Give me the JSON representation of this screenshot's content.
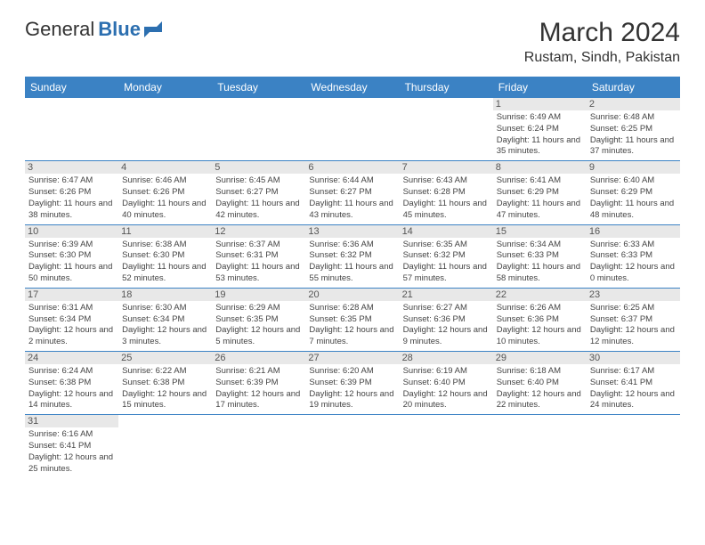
{
  "logo": {
    "text1": "General",
    "text2": "Blue"
  },
  "title": "March 2024",
  "location": "Rustam, Sindh, Pakistan",
  "colors": {
    "header_bg": "#3b82c4",
    "header_text": "#ffffff",
    "daynum_bg": "#e8e8e8",
    "daynum_text": "#555555",
    "cell_text": "#444444",
    "border": "#3b82c4",
    "logo_blue": "#2c6fb0"
  },
  "weekdays": [
    "Sunday",
    "Monday",
    "Tuesday",
    "Wednesday",
    "Thursday",
    "Friday",
    "Saturday"
  ],
  "weeks": [
    [
      null,
      null,
      null,
      null,
      null,
      {
        "d": "1",
        "sr": "6:49 AM",
        "ss": "6:24 PM",
        "dl": "11 hours and 35 minutes."
      },
      {
        "d": "2",
        "sr": "6:48 AM",
        "ss": "6:25 PM",
        "dl": "11 hours and 37 minutes."
      }
    ],
    [
      {
        "d": "3",
        "sr": "6:47 AM",
        "ss": "6:26 PM",
        "dl": "11 hours and 38 minutes."
      },
      {
        "d": "4",
        "sr": "6:46 AM",
        "ss": "6:26 PM",
        "dl": "11 hours and 40 minutes."
      },
      {
        "d": "5",
        "sr": "6:45 AM",
        "ss": "6:27 PM",
        "dl": "11 hours and 42 minutes."
      },
      {
        "d": "6",
        "sr": "6:44 AM",
        "ss": "6:27 PM",
        "dl": "11 hours and 43 minutes."
      },
      {
        "d": "7",
        "sr": "6:43 AM",
        "ss": "6:28 PM",
        "dl": "11 hours and 45 minutes."
      },
      {
        "d": "8",
        "sr": "6:41 AM",
        "ss": "6:29 PM",
        "dl": "11 hours and 47 minutes."
      },
      {
        "d": "9",
        "sr": "6:40 AM",
        "ss": "6:29 PM",
        "dl": "11 hours and 48 minutes."
      }
    ],
    [
      {
        "d": "10",
        "sr": "6:39 AM",
        "ss": "6:30 PM",
        "dl": "11 hours and 50 minutes."
      },
      {
        "d": "11",
        "sr": "6:38 AM",
        "ss": "6:30 PM",
        "dl": "11 hours and 52 minutes."
      },
      {
        "d": "12",
        "sr": "6:37 AM",
        "ss": "6:31 PM",
        "dl": "11 hours and 53 minutes."
      },
      {
        "d": "13",
        "sr": "6:36 AM",
        "ss": "6:32 PM",
        "dl": "11 hours and 55 minutes."
      },
      {
        "d": "14",
        "sr": "6:35 AM",
        "ss": "6:32 PM",
        "dl": "11 hours and 57 minutes."
      },
      {
        "d": "15",
        "sr": "6:34 AM",
        "ss": "6:33 PM",
        "dl": "11 hours and 58 minutes."
      },
      {
        "d": "16",
        "sr": "6:33 AM",
        "ss": "6:33 PM",
        "dl": "12 hours and 0 minutes."
      }
    ],
    [
      {
        "d": "17",
        "sr": "6:31 AM",
        "ss": "6:34 PM",
        "dl": "12 hours and 2 minutes."
      },
      {
        "d": "18",
        "sr": "6:30 AM",
        "ss": "6:34 PM",
        "dl": "12 hours and 3 minutes."
      },
      {
        "d": "19",
        "sr": "6:29 AM",
        "ss": "6:35 PM",
        "dl": "12 hours and 5 minutes."
      },
      {
        "d": "20",
        "sr": "6:28 AM",
        "ss": "6:35 PM",
        "dl": "12 hours and 7 minutes."
      },
      {
        "d": "21",
        "sr": "6:27 AM",
        "ss": "6:36 PM",
        "dl": "12 hours and 9 minutes."
      },
      {
        "d": "22",
        "sr": "6:26 AM",
        "ss": "6:36 PM",
        "dl": "12 hours and 10 minutes."
      },
      {
        "d": "23",
        "sr": "6:25 AM",
        "ss": "6:37 PM",
        "dl": "12 hours and 12 minutes."
      }
    ],
    [
      {
        "d": "24",
        "sr": "6:24 AM",
        "ss": "6:38 PM",
        "dl": "12 hours and 14 minutes."
      },
      {
        "d": "25",
        "sr": "6:22 AM",
        "ss": "6:38 PM",
        "dl": "12 hours and 15 minutes."
      },
      {
        "d": "26",
        "sr": "6:21 AM",
        "ss": "6:39 PM",
        "dl": "12 hours and 17 minutes."
      },
      {
        "d": "27",
        "sr": "6:20 AM",
        "ss": "6:39 PM",
        "dl": "12 hours and 19 minutes."
      },
      {
        "d": "28",
        "sr": "6:19 AM",
        "ss": "6:40 PM",
        "dl": "12 hours and 20 minutes."
      },
      {
        "d": "29",
        "sr": "6:18 AM",
        "ss": "6:40 PM",
        "dl": "12 hours and 22 minutes."
      },
      {
        "d": "30",
        "sr": "6:17 AM",
        "ss": "6:41 PM",
        "dl": "12 hours and 24 minutes."
      }
    ],
    [
      {
        "d": "31",
        "sr": "6:16 AM",
        "ss": "6:41 PM",
        "dl": "12 hours and 25 minutes."
      },
      null,
      null,
      null,
      null,
      null,
      null
    ]
  ],
  "labels": {
    "sunrise": "Sunrise:",
    "sunset": "Sunset:",
    "daylight": "Daylight:"
  }
}
